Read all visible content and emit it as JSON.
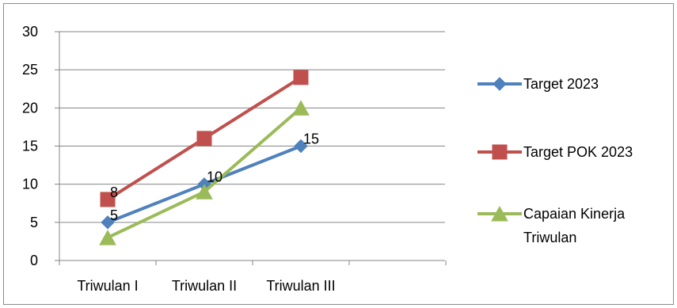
{
  "chart_data": {
    "type": "line",
    "categories": [
      "Triwulan I",
      "Triwulan II",
      "Triwulan III"
    ],
    "ylim": [
      0,
      30
    ],
    "yticks": [
      0,
      5,
      10,
      15,
      20,
      25,
      30
    ],
    "grid": true,
    "legend_position": "right",
    "series": [
      {
        "name": "Target 2023",
        "values": [
          5,
          10,
          15
        ],
        "color": "#4F81BD",
        "marker": "diamond"
      },
      {
        "name": "Target POK 2023",
        "values": [
          8,
          16,
          24
        ],
        "color": "#C0504D",
        "marker": "square"
      },
      {
        "name": "Capaian Kinerja Triwulan",
        "legend_lines": [
          "Capaian Kinerja",
          "Triwulan"
        ],
        "values": [
          3,
          9,
          20
        ],
        "color": "#9BBB59",
        "marker": "triangle"
      }
    ],
    "data_labels": [
      {
        "series": 1,
        "point": 0,
        "text": "8"
      },
      {
        "series": 0,
        "point": 0,
        "text": "5"
      },
      {
        "series": 0,
        "point": 1,
        "text": "10"
      },
      {
        "series": 0,
        "point": 2,
        "text": "15"
      }
    ]
  }
}
